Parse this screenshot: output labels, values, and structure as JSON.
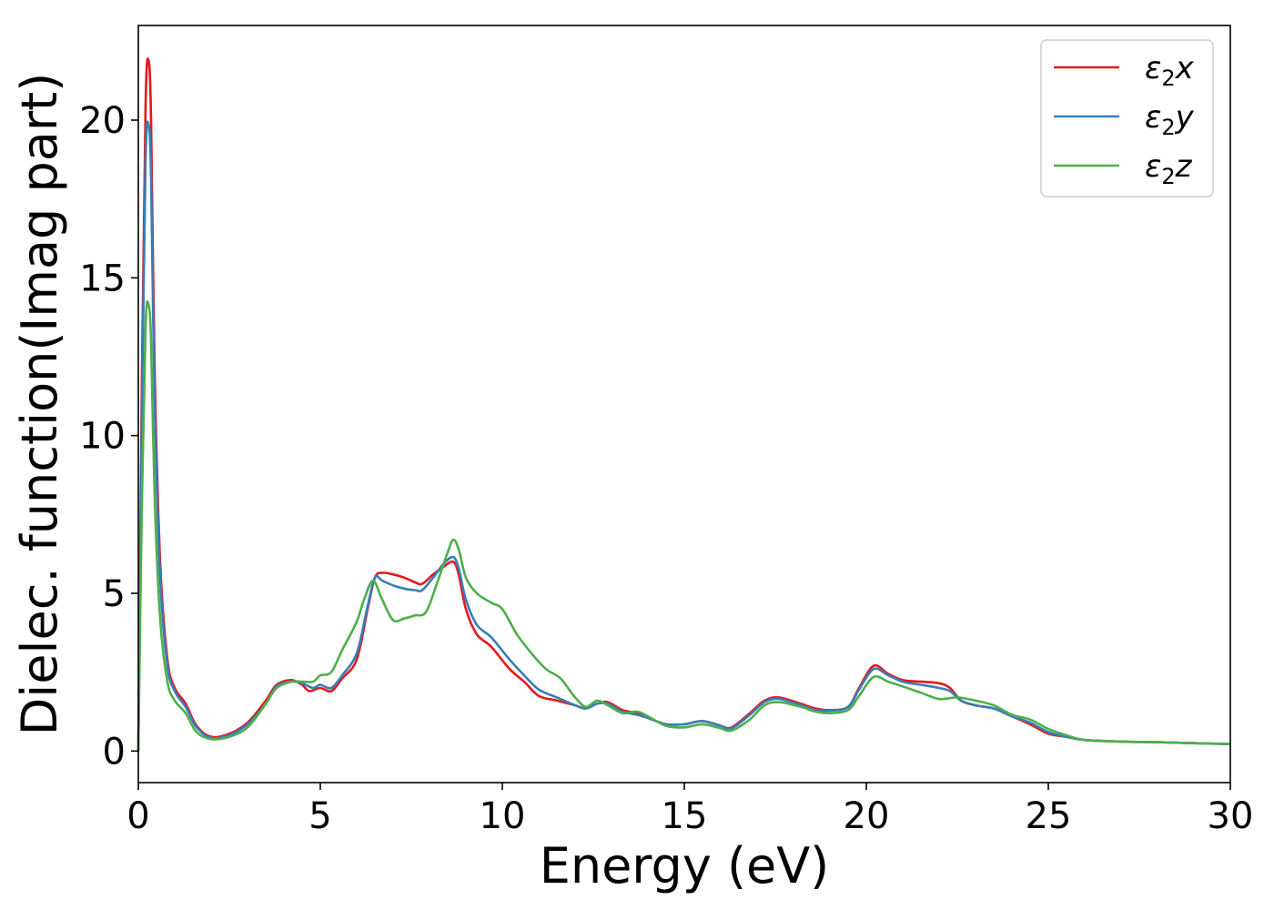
{
  "chart_data": {
    "type": "line",
    "title": "",
    "xlabel": "Energy (eV)",
    "ylabel": "Dielec. function(Imag part)",
    "xlim": [
      0,
      30
    ],
    "ylim": [
      -1,
      23
    ],
    "xticks": [
      0,
      5,
      10,
      15,
      20,
      25,
      30
    ],
    "yticks": [
      0,
      5,
      10,
      15,
      20
    ],
    "grid": false,
    "legend_position": "top-right",
    "series": [
      {
        "name": "ε2x",
        "legend": {
          "base": "ε",
          "sub": "2",
          "axis": "x"
        },
        "color": "#e41a1c",
        "points": [
          [
            0,
            0
          ],
          [
            0.1,
            12
          ],
          [
            0.2,
            20.5
          ],
          [
            0.28,
            21.9
          ],
          [
            0.35,
            20
          ],
          [
            0.45,
            12
          ],
          [
            0.6,
            6
          ],
          [
            0.8,
            2.9
          ],
          [
            1.0,
            2.0
          ],
          [
            1.3,
            1.5
          ],
          [
            1.6,
            0.8
          ],
          [
            2.0,
            0.45
          ],
          [
            2.5,
            0.55
          ],
          [
            3.0,
            0.9
          ],
          [
            3.5,
            1.6
          ],
          [
            3.8,
            2.1
          ],
          [
            4.2,
            2.25
          ],
          [
            4.5,
            2.1
          ],
          [
            4.7,
            1.9
          ],
          [
            5.0,
            2.0
          ],
          [
            5.3,
            1.9
          ],
          [
            5.6,
            2.3
          ],
          [
            6.0,
            2.9
          ],
          [
            6.3,
            4.5
          ],
          [
            6.5,
            5.5
          ],
          [
            6.7,
            5.65
          ],
          [
            7.0,
            5.6
          ],
          [
            7.3,
            5.5
          ],
          [
            7.6,
            5.35
          ],
          [
            7.8,
            5.3
          ],
          [
            8.1,
            5.6
          ],
          [
            8.4,
            5.85
          ],
          [
            8.65,
            6.0
          ],
          [
            8.8,
            5.6
          ],
          [
            9.0,
            4.5
          ],
          [
            9.3,
            3.7
          ],
          [
            9.7,
            3.3
          ],
          [
            10.2,
            2.6
          ],
          [
            10.6,
            2.2
          ],
          [
            11.0,
            1.75
          ],
          [
            11.5,
            1.6
          ],
          [
            12.0,
            1.45
          ],
          [
            12.3,
            1.35
          ],
          [
            12.6,
            1.5
          ],
          [
            12.9,
            1.55
          ],
          [
            13.3,
            1.3
          ],
          [
            13.7,
            1.2
          ],
          [
            14.0,
            1.05
          ],
          [
            14.5,
            0.85
          ],
          [
            15.0,
            0.85
          ],
          [
            15.5,
            0.95
          ],
          [
            16.0,
            0.8
          ],
          [
            16.3,
            0.75
          ],
          [
            16.8,
            1.2
          ],
          [
            17.2,
            1.6
          ],
          [
            17.6,
            1.7
          ],
          [
            18.2,
            1.5
          ],
          [
            18.6,
            1.35
          ],
          [
            19.0,
            1.3
          ],
          [
            19.5,
            1.4
          ],
          [
            19.8,
            2.0
          ],
          [
            20.2,
            2.7
          ],
          [
            20.6,
            2.45
          ],
          [
            21.0,
            2.25
          ],
          [
            21.5,
            2.2
          ],
          [
            22.0,
            2.15
          ],
          [
            22.3,
            2.0
          ],
          [
            22.6,
            1.6
          ],
          [
            23.0,
            1.45
          ],
          [
            23.5,
            1.35
          ],
          [
            24.0,
            1.1
          ],
          [
            24.5,
            0.85
          ],
          [
            25.0,
            0.55
          ],
          [
            25.5,
            0.45
          ],
          [
            26.0,
            0.35
          ],
          [
            27.0,
            0.3
          ],
          [
            28.0,
            0.28
          ],
          [
            29.0,
            0.25
          ],
          [
            30.0,
            0.22
          ]
        ]
      },
      {
        "name": "ε2y",
        "legend": {
          "base": "ε",
          "sub": "2",
          "axis": "y"
        },
        "color": "#377eb8",
        "points": [
          [
            0,
            0
          ],
          [
            0.1,
            11
          ],
          [
            0.2,
            18.8
          ],
          [
            0.28,
            19.85
          ],
          [
            0.35,
            18.2
          ],
          [
            0.45,
            11
          ],
          [
            0.6,
            5.5
          ],
          [
            0.8,
            2.7
          ],
          [
            1.0,
            1.9
          ],
          [
            1.3,
            1.4
          ],
          [
            1.6,
            0.75
          ],
          [
            2.0,
            0.42
          ],
          [
            2.5,
            0.5
          ],
          [
            3.0,
            0.85
          ],
          [
            3.5,
            1.5
          ],
          [
            3.8,
            2.05
          ],
          [
            4.2,
            2.2
          ],
          [
            4.5,
            2.15
          ],
          [
            4.8,
            2.0
          ],
          [
            5.0,
            2.1
          ],
          [
            5.3,
            2.0
          ],
          [
            5.6,
            2.4
          ],
          [
            6.0,
            3.1
          ],
          [
            6.3,
            4.6
          ],
          [
            6.5,
            5.5
          ],
          [
            6.7,
            5.4
          ],
          [
            7.0,
            5.25
          ],
          [
            7.3,
            5.15
          ],
          [
            7.6,
            5.1
          ],
          [
            7.8,
            5.1
          ],
          [
            8.1,
            5.5
          ],
          [
            8.4,
            5.95
          ],
          [
            8.65,
            6.15
          ],
          [
            8.8,
            5.8
          ],
          [
            9.0,
            4.8
          ],
          [
            9.3,
            4.0
          ],
          [
            9.7,
            3.6
          ],
          [
            10.2,
            2.9
          ],
          [
            10.6,
            2.4
          ],
          [
            11.0,
            1.95
          ],
          [
            11.5,
            1.7
          ],
          [
            12.0,
            1.45
          ],
          [
            12.3,
            1.35
          ],
          [
            12.6,
            1.5
          ],
          [
            12.9,
            1.5
          ],
          [
            13.3,
            1.25
          ],
          [
            13.7,
            1.15
          ],
          [
            14.0,
            1.05
          ],
          [
            14.5,
            0.85
          ],
          [
            15.0,
            0.85
          ],
          [
            15.5,
            0.95
          ],
          [
            16.0,
            0.8
          ],
          [
            16.3,
            0.72
          ],
          [
            16.8,
            1.15
          ],
          [
            17.2,
            1.55
          ],
          [
            17.6,
            1.65
          ],
          [
            18.2,
            1.45
          ],
          [
            18.6,
            1.3
          ],
          [
            19.0,
            1.28
          ],
          [
            19.5,
            1.4
          ],
          [
            19.8,
            1.95
          ],
          [
            20.2,
            2.6
          ],
          [
            20.6,
            2.4
          ],
          [
            21.0,
            2.2
          ],
          [
            21.5,
            2.1
          ],
          [
            22.0,
            2.0
          ],
          [
            22.3,
            1.9
          ],
          [
            22.6,
            1.6
          ],
          [
            23.0,
            1.45
          ],
          [
            23.5,
            1.35
          ],
          [
            24.0,
            1.1
          ],
          [
            24.5,
            0.9
          ],
          [
            25.0,
            0.6
          ],
          [
            25.5,
            0.45
          ],
          [
            26.0,
            0.35
          ],
          [
            27.0,
            0.3
          ],
          [
            28.0,
            0.28
          ],
          [
            29.0,
            0.25
          ],
          [
            30.0,
            0.22
          ]
        ]
      },
      {
        "name": "ε2z",
        "legend": {
          "base": "ε",
          "sub": "2",
          "axis": "z"
        },
        "color": "#4daf4a",
        "points": [
          [
            0,
            0
          ],
          [
            0.1,
            8
          ],
          [
            0.2,
            13.5
          ],
          [
            0.28,
            14.15
          ],
          [
            0.35,
            13
          ],
          [
            0.45,
            8
          ],
          [
            0.6,
            4.2
          ],
          [
            0.8,
            2.2
          ],
          [
            1.0,
            1.6
          ],
          [
            1.3,
            1.2
          ],
          [
            1.6,
            0.6
          ],
          [
            2.0,
            0.38
          ],
          [
            2.5,
            0.45
          ],
          [
            3.0,
            0.75
          ],
          [
            3.5,
            1.5
          ],
          [
            3.8,
            2.0
          ],
          [
            4.2,
            2.2
          ],
          [
            4.5,
            2.2
          ],
          [
            4.8,
            2.2
          ],
          [
            5.0,
            2.4
          ],
          [
            5.3,
            2.5
          ],
          [
            5.6,
            3.2
          ],
          [
            6.0,
            4.1
          ],
          [
            6.2,
            4.8
          ],
          [
            6.45,
            5.4
          ],
          [
            6.7,
            4.8
          ],
          [
            7.0,
            4.15
          ],
          [
            7.3,
            4.2
          ],
          [
            7.6,
            4.3
          ],
          [
            7.9,
            4.4
          ],
          [
            8.2,
            5.3
          ],
          [
            8.5,
            6.3
          ],
          [
            8.65,
            6.7
          ],
          [
            8.8,
            6.4
          ],
          [
            9.0,
            5.5
          ],
          [
            9.3,
            5.0
          ],
          [
            9.7,
            4.7
          ],
          [
            10.0,
            4.5
          ],
          [
            10.4,
            3.7
          ],
          [
            10.8,
            3.1
          ],
          [
            11.2,
            2.6
          ],
          [
            11.6,
            2.3
          ],
          [
            12.0,
            1.7
          ],
          [
            12.3,
            1.4
          ],
          [
            12.6,
            1.6
          ],
          [
            12.9,
            1.45
          ],
          [
            13.3,
            1.2
          ],
          [
            13.7,
            1.25
          ],
          [
            14.0,
            1.1
          ],
          [
            14.5,
            0.8
          ],
          [
            15.0,
            0.75
          ],
          [
            15.5,
            0.85
          ],
          [
            16.0,
            0.72
          ],
          [
            16.3,
            0.65
          ],
          [
            16.8,
            1.0
          ],
          [
            17.2,
            1.45
          ],
          [
            17.6,
            1.55
          ],
          [
            18.2,
            1.4
          ],
          [
            18.6,
            1.25
          ],
          [
            19.0,
            1.2
          ],
          [
            19.5,
            1.3
          ],
          [
            19.8,
            1.75
          ],
          [
            20.2,
            2.35
          ],
          [
            20.6,
            2.2
          ],
          [
            21.0,
            2.05
          ],
          [
            21.5,
            1.85
          ],
          [
            22.0,
            1.65
          ],
          [
            22.5,
            1.7
          ],
          [
            23.0,
            1.6
          ],
          [
            23.5,
            1.45
          ],
          [
            24.0,
            1.15
          ],
          [
            24.5,
            1.0
          ],
          [
            25.0,
            0.7
          ],
          [
            25.5,
            0.5
          ],
          [
            26.0,
            0.35
          ],
          [
            27.0,
            0.3
          ],
          [
            28.0,
            0.28
          ],
          [
            29.0,
            0.25
          ],
          [
            30.0,
            0.22
          ]
        ]
      }
    ]
  }
}
